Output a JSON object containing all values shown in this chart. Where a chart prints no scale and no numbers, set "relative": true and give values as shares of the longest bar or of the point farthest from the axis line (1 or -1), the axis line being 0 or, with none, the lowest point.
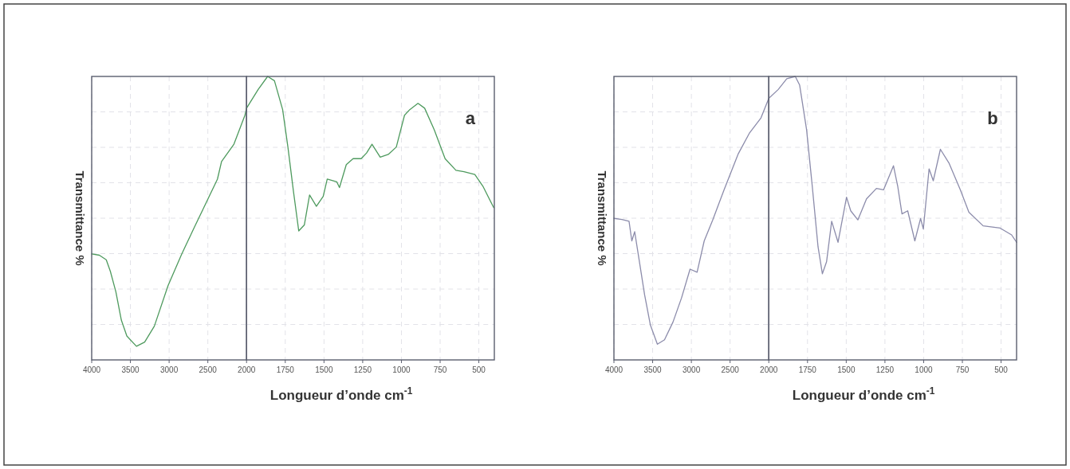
{
  "chart_data": [
    {
      "type": "line",
      "relative": true,
      "ylabel": "Transmittance %",
      "grid": true,
      "xlim": [
        4000,
        2000
      ],
      "xticks": [
        4000,
        3500,
        3000,
        2500,
        2000
      ],
      "series": [
        {
          "color": "#4e9a5e",
          "x": [
            4000,
            3901,
            3812,
            3759,
            3688,
            3617,
            3546,
            3422,
            3316,
            3191,
            3014,
            2837,
            2660,
            2482,
            2376,
            2323,
            2163,
            2021,
            2000
          ],
          "values": [
            0.421,
            0.416,
            0.398,
            0.352,
            0.271,
            0.158,
            0.095,
            0.054,
            0.071,
            0.134,
            0.295,
            0.421,
            0.536,
            0.65,
            0.718,
            0.788,
            0.857,
            0.972,
            1
          ]
        }
      ]
    },
    {
      "type": "line",
      "relative": true,
      "xlabel": "Longueur d’onde cm$^{-1}$",
      "annotations": [
        "a"
      ],
      "grid": true,
      "xlim": [
        2000,
        400
      ],
      "xticks": [
        1750,
        1500,
        1250,
        1000,
        750,
        500
      ],
      "series": [
        {
          "color": "#4e9a5e",
          "x": [
            2000,
            1925,
            1864,
            1820,
            1767,
            1733,
            1698,
            1663,
            1627,
            1593,
            1549,
            1505,
            1479,
            1417,
            1400,
            1356,
            1312,
            1260,
            1225,
            1190,
            1137,
            1085,
            1033,
            980,
            946,
            893,
            850,
            788,
            718,
            648,
            596,
            526,
            474,
            404
          ],
          "values": [
            0.888,
            0.954,
            1,
            0.985,
            0.883,
            0.751,
            0.598,
            0.455,
            0.476,
            0.582,
            0.542,
            0.577,
            0.638,
            0.628,
            0.608,
            0.689,
            0.71,
            0.71,
            0.73,
            0.761,
            0.715,
            0.725,
            0.751,
            0.863,
            0.883,
            0.905,
            0.888,
            0.812,
            0.71,
            0.669,
            0.664,
            0.654,
            0.613,
            0.537
          ]
        }
      ]
    },
    {
      "type": "line",
      "relative": true,
      "ylabel": "Transmittance %",
      "grid": true,
      "xlim": [
        4000,
        2000
      ],
      "xticks": [
        4000,
        3500,
        3000,
        2500,
        2000
      ],
      "series": [
        {
          "color": "#8c8cab",
          "x": [
            4000,
            3897,
            3805,
            3769,
            3732,
            3677,
            3604,
            3530,
            3439,
            3347,
            3237,
            3127,
            3017,
            2926,
            2834,
            2724,
            2578,
            2394,
            2248,
            2101,
            2000
          ],
          "values": [
            0.541,
            0.537,
            0.53,
            0.455,
            0.49,
            0.387,
            0.249,
            0.134,
            0.06,
            0.077,
            0.145,
            0.237,
            0.347,
            0.335,
            0.455,
            0.535,
            0.65,
            0.788,
            0.868,
            0.925,
            1
          ]
        }
      ]
    },
    {
      "type": "line",
      "relative": true,
      "xlabel": "Longueur d’onde cm$^{-1}$",
      "annotations": [
        "b"
      ],
      "grid": true,
      "xlim": [
        2000,
        400
      ],
      "xticks": [
        1750,
        1500,
        1250,
        1000,
        750,
        500
      ],
      "series": [
        {
          "color": "#8c8cab",
          "x": [
            2000,
            1939,
            1884,
            1829,
            1801,
            1756,
            1719,
            1682,
            1654,
            1627,
            1594,
            1553,
            1498,
            1471,
            1425,
            1369,
            1305,
            1259,
            1195,
            1167,
            1140,
            1103,
            1057,
            1020,
            1002,
            965,
            938,
            892,
            837,
            763,
            708,
            616,
            506,
            432,
            400
          ],
          "values": [
            0.923,
            0.954,
            0.992,
            1,
            0.97,
            0.812,
            0.611,
            0.399,
            0.304,
            0.346,
            0.489,
            0.415,
            0.574,
            0.526,
            0.494,
            0.568,
            0.605,
            0.6,
            0.685,
            0.611,
            0.515,
            0.526,
            0.42,
            0.499,
            0.462,
            0.674,
            0.632,
            0.743,
            0.695,
            0.6,
            0.521,
            0.473,
            0.465,
            0.441,
            0.415
          ]
        }
      ]
    }
  ]
}
